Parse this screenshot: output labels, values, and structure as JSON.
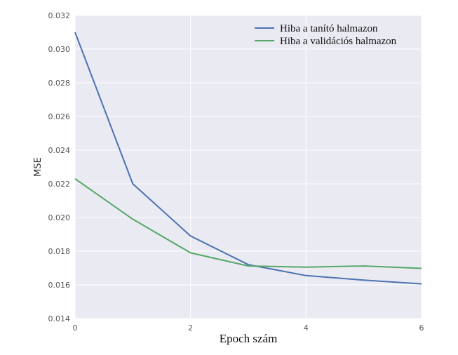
{
  "chart_data": {
    "type": "line",
    "xlabel": "Epoch szám",
    "ylabel": "MSE",
    "xlim": [
      0,
      6
    ],
    "ylim": [
      0.014,
      0.032
    ],
    "xticks": [
      "0",
      "2",
      "4",
      "6"
    ],
    "yticks": [
      "0.014",
      "0.016",
      "0.018",
      "0.020",
      "0.022",
      "0.024",
      "0.026",
      "0.028",
      "0.030",
      "0.032"
    ],
    "grid": true,
    "legend_position": "top-right",
    "x": [
      0,
      1,
      2,
      3,
      4,
      5,
      6
    ],
    "series": [
      {
        "name": "Hiba a tanító halmazon",
        "color": "#4c72b0",
        "values": [
          0.031,
          0.022,
          0.0189,
          0.0172,
          0.01655,
          0.01628,
          0.01606
        ]
      },
      {
        "name": "Hiba a validációs halmazon",
        "color": "#55a868",
        "values": [
          0.0223,
          0.0199,
          0.0179,
          0.01712,
          0.01705,
          0.01712,
          0.01698
        ]
      }
    ]
  }
}
